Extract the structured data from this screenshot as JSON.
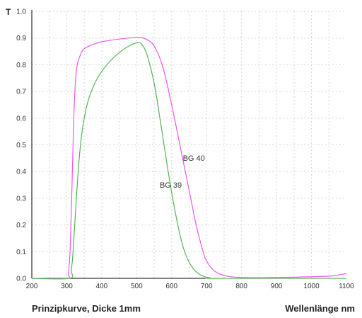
{
  "chart_data": {
    "type": "line",
    "ylabel": "T",
    "xlabel": "Wellenlänge nm",
    "caption": "Prinzipkurve, Dicke 1mm",
    "xlim": [
      200,
      1100
    ],
    "ylim": [
      0,
      1.0
    ],
    "x_ticks": [
      200,
      300,
      400,
      500,
      600,
      700,
      800,
      900,
      1000,
      1100
    ],
    "y_ticks": [
      "0.0",
      "0.1",
      "0.2",
      "0.3",
      "0.4",
      "0.5",
      "0.6",
      "0.7",
      "0.8",
      "0.9",
      "1.0"
    ],
    "grid": true,
    "series": [
      {
        "name": "BG 40",
        "color": "#ee55ee",
        "label_at": [
          632,
          0.44
        ],
        "points": [
          [
            200,
            0
          ],
          [
            300,
            0
          ],
          [
            305,
            0.02
          ],
          [
            310,
            0.12
          ],
          [
            315,
            0.35
          ],
          [
            320,
            0.6
          ],
          [
            325,
            0.74
          ],
          [
            330,
            0.8
          ],
          [
            340,
            0.84
          ],
          [
            350,
            0.86
          ],
          [
            375,
            0.876
          ],
          [
            400,
            0.886
          ],
          [
            450,
            0.896
          ],
          [
            500,
            0.902
          ],
          [
            525,
            0.897
          ],
          [
            550,
            0.87
          ],
          [
            575,
            0.79
          ],
          [
            600,
            0.65
          ],
          [
            625,
            0.49
          ],
          [
            650,
            0.33
          ],
          [
            670,
            0.2
          ],
          [
            690,
            0.1
          ],
          [
            700,
            0.065
          ],
          [
            720,
            0.03
          ],
          [
            740,
            0.015
          ],
          [
            760,
            0.008
          ],
          [
            800,
            0.003
          ],
          [
            900,
            0.003
          ],
          [
            1000,
            0.006
          ],
          [
            1050,
            0.008
          ],
          [
            1080,
            0.013
          ],
          [
            1100,
            0.018
          ]
        ]
      },
      {
        "name": "BG 39",
        "color": "#55b355",
        "label_at": [
          566,
          0.34
        ],
        "points": [
          [
            200,
            0
          ],
          [
            308,
            0
          ],
          [
            313,
            0.03
          ],
          [
            318,
            0.1
          ],
          [
            325,
            0.25
          ],
          [
            335,
            0.44
          ],
          [
            345,
            0.56
          ],
          [
            360,
            0.66
          ],
          [
            380,
            0.73
          ],
          [
            400,
            0.775
          ],
          [
            425,
            0.815
          ],
          [
            450,
            0.845
          ],
          [
            475,
            0.868
          ],
          [
            500,
            0.882
          ],
          [
            515,
            0.876
          ],
          [
            530,
            0.835
          ],
          [
            550,
            0.73
          ],
          [
            570,
            0.57
          ],
          [
            590,
            0.4
          ],
          [
            610,
            0.25
          ],
          [
            630,
            0.13
          ],
          [
            650,
            0.06
          ],
          [
            670,
            0.025
          ],
          [
            690,
            0.008
          ],
          [
            710,
            0.002
          ],
          [
            730,
            0
          ],
          [
            1100,
            0
          ]
        ]
      }
    ]
  }
}
